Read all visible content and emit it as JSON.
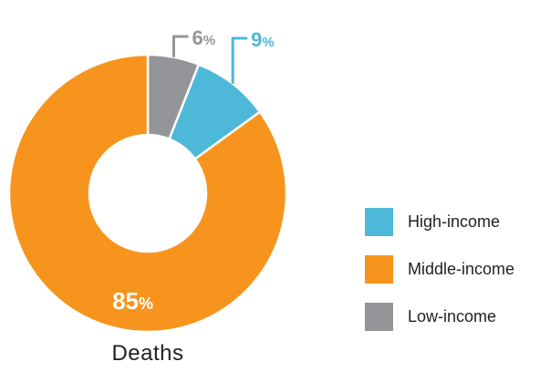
{
  "chart_data": {
    "type": "pie",
    "title": "Deaths",
    "slices": [
      {
        "name": "Low-income",
        "value": 6,
        "label": "6",
        "unit": "%",
        "color": "#939598"
      },
      {
        "name": "High-income",
        "value": 9,
        "label": "9",
        "unit": "%",
        "color": "#4db8d8"
      },
      {
        "name": "Middle-income",
        "value": 85,
        "label": "85",
        "unit": "%",
        "color": "#f7941d"
      }
    ],
    "legend": {
      "placement": "bottom-right",
      "items": [
        {
          "label": "High-income",
          "color": "#4db8d8"
        },
        {
          "label": "Middle-income",
          "color": "#f7941d"
        },
        {
          "label": "Low-income",
          "color": "#939598"
        }
      ]
    }
  }
}
